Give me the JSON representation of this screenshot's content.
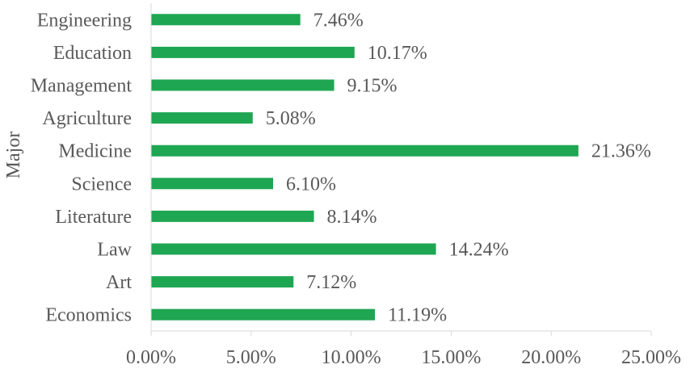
{
  "chart_data": {
    "type": "bar",
    "orientation": "horizontal",
    "categories": [
      "Engineering",
      "Education",
      "Management",
      "Agriculture",
      "Medicine",
      "Science",
      "Literature",
      "Law",
      "Art",
      "Economics"
    ],
    "values": [
      7.46,
      10.17,
      9.15,
      5.08,
      21.36,
      6.1,
      8.14,
      14.24,
      7.12,
      11.19
    ],
    "value_labels": [
      "7.46%",
      "10.17%",
      "9.15%",
      "5.08%",
      "21.36%",
      "6.10%",
      "8.14%",
      "14.24%",
      "7.12%",
      "11.19%"
    ],
    "ylabel": "Major",
    "xlim": [
      0,
      25
    ],
    "x_ticks": [
      0,
      5,
      10,
      15,
      20,
      25
    ],
    "x_tick_labels": [
      "0.00%",
      "5.00%",
      "10.00%",
      "15.00%",
      "20.00%",
      "25.00%"
    ],
    "grid": false,
    "legend": "none",
    "bar_color": "#1fa653"
  }
}
